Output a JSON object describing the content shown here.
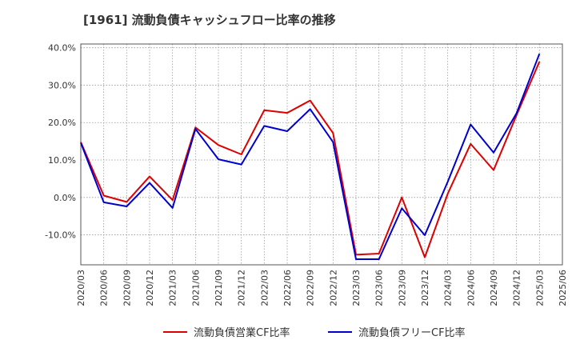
{
  "chart_data": {
    "type": "line",
    "title": "[1961]  流動負債キャッシュフロー比率の推移",
    "xlabel": "",
    "ylabel": "",
    "x": [
      "2020/03",
      "2020/06",
      "2020/09",
      "2020/12",
      "2021/03",
      "2021/06",
      "2021/09",
      "2021/12",
      "2022/03",
      "2022/06",
      "2022/09",
      "2022/12",
      "2023/03",
      "2023/06",
      "2023/09",
      "2023/12",
      "2024/03",
      "2024/06",
      "2024/09",
      "2024/12",
      "2025/03"
    ],
    "x_ticks": [
      "2020/03",
      "2020/06",
      "2020/09",
      "2020/12",
      "2021/03",
      "2021/06",
      "2021/09",
      "2021/12",
      "2022/03",
      "2022/06",
      "2022/09",
      "2022/12",
      "2023/03",
      "2023/06",
      "2023/09",
      "2023/12",
      "2024/03",
      "2024/06",
      "2024/09",
      "2024/12",
      "2025/03",
      "2025/06"
    ],
    "ylim": [
      -18,
      41
    ],
    "y_ticks": [
      -10,
      0,
      10,
      20,
      30,
      40
    ],
    "y_tick_labels": [
      "-10.0%",
      "0.0%",
      "10.0%",
      "20.0%",
      "30.0%",
      "40.0%"
    ],
    "grid": true,
    "legend_position": "bottom",
    "series": [
      {
        "name": "流動負債営業CF比率",
        "color": "#dd0000",
        "values": [
          14.8,
          0.5,
          -1.2,
          5.6,
          -0.7,
          18.7,
          14.0,
          11.5,
          23.3,
          22.6,
          25.9,
          17.2,
          -15.3,
          -15.0,
          0.0,
          -16.0,
          1.0,
          14.3,
          7.3,
          22.0,
          36.3
        ]
      },
      {
        "name": "流動負債フリーCF比率",
        "color": "#0000cc",
        "values": [
          14.6,
          -1.3,
          -2.4,
          3.9,
          -2.8,
          18.3,
          10.2,
          8.8,
          19.1,
          17.7,
          23.6,
          14.8,
          -16.5,
          -16.5,
          -2.9,
          -10.1,
          4.2,
          19.5,
          12.0,
          22.5,
          38.4
        ]
      }
    ]
  }
}
